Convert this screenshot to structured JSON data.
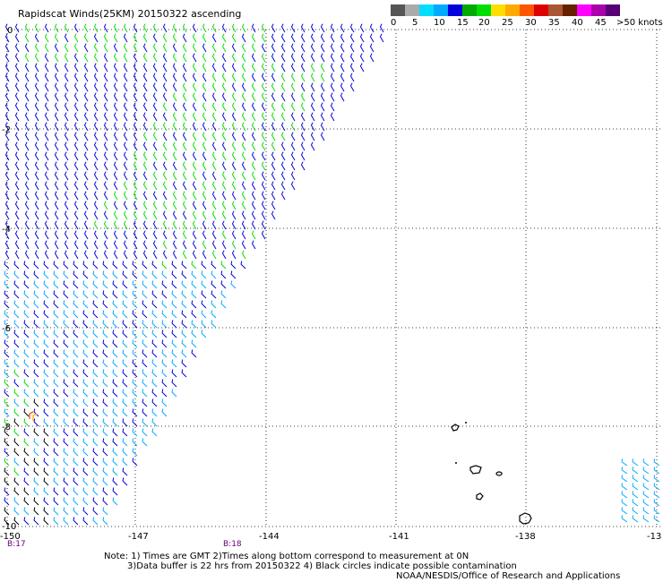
{
  "title": "Rapidscat Winds(25KM) 20150322 ascending",
  "scale": {
    "colors": [
      "#555555",
      "#aaaaaa",
      "#00ddff",
      "#00aaff",
      "#0000dd",
      "#00aa00",
      "#00dd00",
      "#ffdd00",
      "#ffaa00",
      "#ff5500",
      "#dd0000",
      "#aa5533",
      "#662200",
      "#ff00ff",
      "#aa00aa",
      "#550077"
    ],
    "labels": [
      "0",
      "5",
      "10",
      "15",
      "20",
      "25",
      "30",
      "35",
      "40",
      "45",
      ">50 knots"
    ]
  },
  "axes": {
    "x_ticks": [
      "-150",
      "-147",
      "-144",
      "-141",
      "-138",
      "-13"
    ],
    "y_ticks": [
      "0",
      "-2",
      "-4",
      "-6",
      "-8",
      "-10"
    ]
  },
  "time_labels": [
    "B:17",
    "B:18"
  ],
  "notes": {
    "line1": "Note: 1) Times are GMT 2)Times along bottom correspond to measurement at 0N",
    "line2": "3)Data buffer is 22 hrs from 20150322 4) Black circles indicate possible contamination",
    "line3": "NOAA/NESDIS/Office of Research and Applications"
  }
}
